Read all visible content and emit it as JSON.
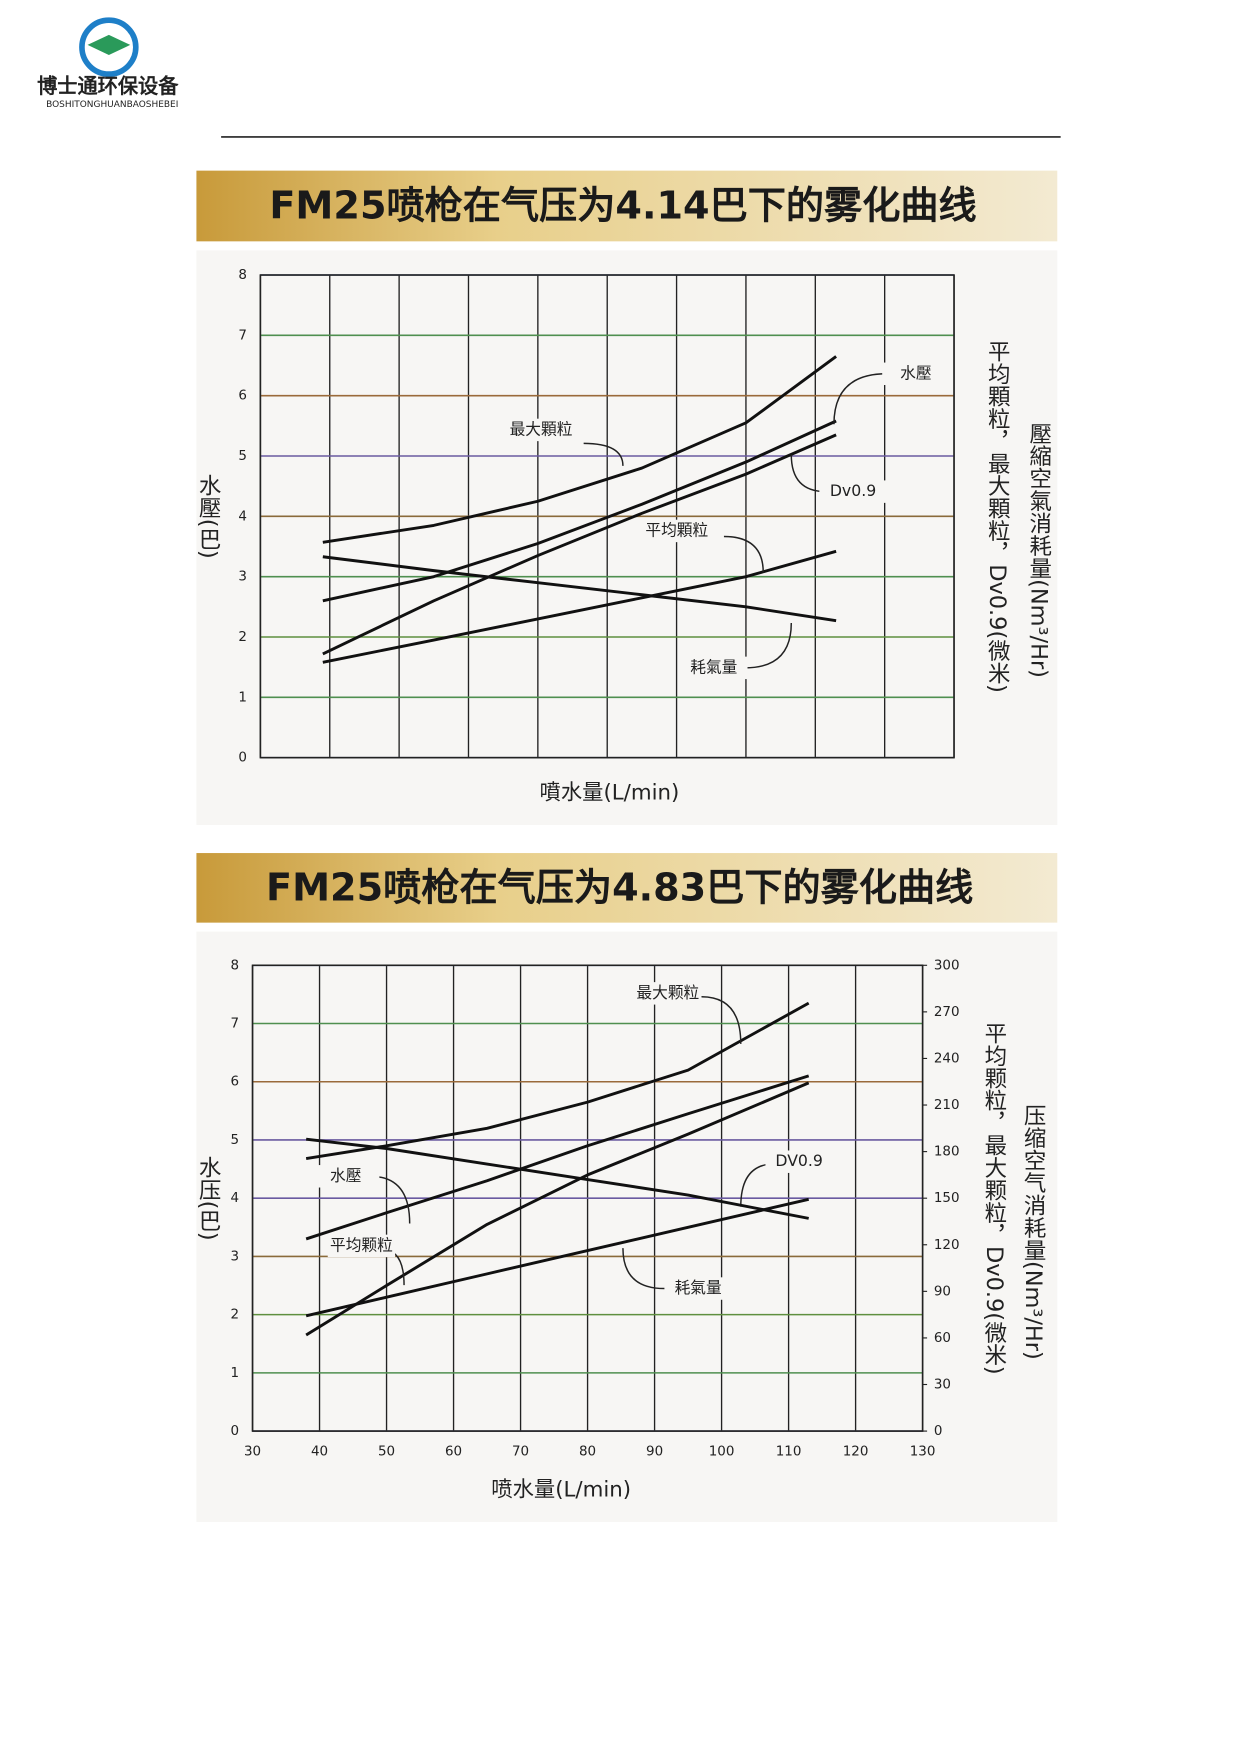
{
  "header": {
    "brand": "博士通环保设备",
    "brand_en": "BOSHITONGHUANBAOSHEBEI"
  },
  "chart_data": [
    {
      "type": "line",
      "title": "FM25喷枪在气压为4.14巴下的雾化曲线",
      "ylabel": "水壓(巴)",
      "y2label_1": "平均顆粒，最大顆粒，Dv0.9(微米)",
      "y2label_2": "壓縮空氣消耗量(Nm³/Hr)",
      "xlabel": "噴水量(L/min)",
      "xlim": [
        30,
        130
      ],
      "xticks": [
        30,
        40,
        50,
        60,
        70,
        80,
        90,
        100,
        110,
        120,
        130
      ],
      "xtick_labels": false,
      "ylim": [
        0,
        8
      ],
      "yticks": [
        0,
        1,
        2,
        3,
        4,
        5,
        6,
        7,
        8
      ],
      "grid": true,
      "grid_colors": [
        "#555577",
        "#4f8f4f",
        "#5f8f3f",
        "#4f8f4f",
        "#8a6a3a",
        "#6a5aa0",
        "#9a6a3a",
        "#4f8f4f",
        "#4a6aa0"
      ],
      "series": [
        {
          "name": "最大顆粒",
          "color": "#111",
          "x": [
            39,
            55,
            70,
            85,
            100,
            113
          ],
          "values": [
            3.57,
            3.85,
            4.25,
            4.8,
            5.55,
            6.65
          ]
        },
        {
          "name": "水壓",
          "color": "#111",
          "x": [
            39,
            55,
            70,
            85,
            100,
            113
          ],
          "values": [
            2.6,
            3.0,
            3.55,
            4.2,
            4.9,
            5.58
          ]
        },
        {
          "name": "Dv0.9",
          "color": "#111",
          "x": [
            39,
            55,
            70,
            85,
            100,
            113
          ],
          "values": [
            1.72,
            2.6,
            3.35,
            4.05,
            4.7,
            5.35
          ]
        },
        {
          "name": "平均顆粒",
          "color": "#111",
          "x": [
            39,
            55,
            70,
            85,
            100,
            113
          ],
          "values": [
            1.58,
            1.95,
            2.3,
            2.65,
            3.0,
            3.42
          ]
        },
        {
          "name": "耗氣量",
          "color": "#111",
          "x": [
            39,
            55,
            70,
            85,
            100,
            113
          ],
          "values": [
            3.33,
            3.1,
            2.9,
            2.7,
            2.5,
            2.27
          ]
        }
      ]
    },
    {
      "type": "line",
      "title": "FM25喷枪在气压为4.83巴下的雾化曲线",
      "ylabel": "水压(巴)",
      "y2label_1": "平均颗粒，最大颗粒，Dv0.9(微米)",
      "y2label_2": "压缩空气消耗量(Nm³/Hr)",
      "xlabel": "喷水量(L/min)",
      "xlim": [
        30,
        130
      ],
      "xticks": [
        30,
        40,
        50,
        60,
        70,
        80,
        90,
        100,
        110,
        120,
        130
      ],
      "xtick_labels": true,
      "ylim": [
        0,
        8
      ],
      "yticks": [
        0,
        1,
        2,
        3,
        4,
        5,
        6,
        7,
        8
      ],
      "y2lim": [
        0,
        300
      ],
      "y2ticks": [
        0,
        30,
        60,
        90,
        120,
        150,
        180,
        210,
        240,
        270,
        300
      ],
      "grid": true,
      "grid_colors": [
        "#555577",
        "#4f8f4f",
        "#5f8f3f",
        "#8a6a3a",
        "#6a5aa0",
        "#6a5aa0",
        "#9a6a3a",
        "#4f8f4f",
        "#4a6aa0"
      ],
      "series": [
        {
          "name": "最大颗粒",
          "color": "#111",
          "x": [
            38,
            50,
            65,
            80,
            95,
            113
          ],
          "values": [
            4.68,
            4.9,
            5.2,
            5.65,
            6.2,
            7.35
          ]
        },
        {
          "name": "DV0.9",
          "color": "#111",
          "x": [
            38,
            50,
            65,
            80,
            95,
            113
          ],
          "values": [
            3.3,
            3.75,
            4.3,
            4.9,
            5.45,
            6.1
          ]
        },
        {
          "name": "水壓",
          "color": "#111",
          "x": [
            38,
            50,
            65,
            80,
            95,
            113
          ],
          "values": [
            1.65,
            2.5,
            3.55,
            4.4,
            5.1,
            5.98
          ]
        },
        {
          "name": "平均颗粒",
          "color": "#111",
          "x": [
            38,
            50,
            65,
            80,
            95,
            113
          ],
          "values": [
            1.98,
            2.3,
            2.7,
            3.1,
            3.5,
            3.98
          ]
        },
        {
          "name": "耗氣量",
          "color": "#111",
          "axis": "y2",
          "x": [
            38,
            50,
            65,
            80,
            95,
            113
          ],
          "values": [
            188,
            182,
            172,
            162,
            152,
            137
          ]
        }
      ]
    }
  ]
}
